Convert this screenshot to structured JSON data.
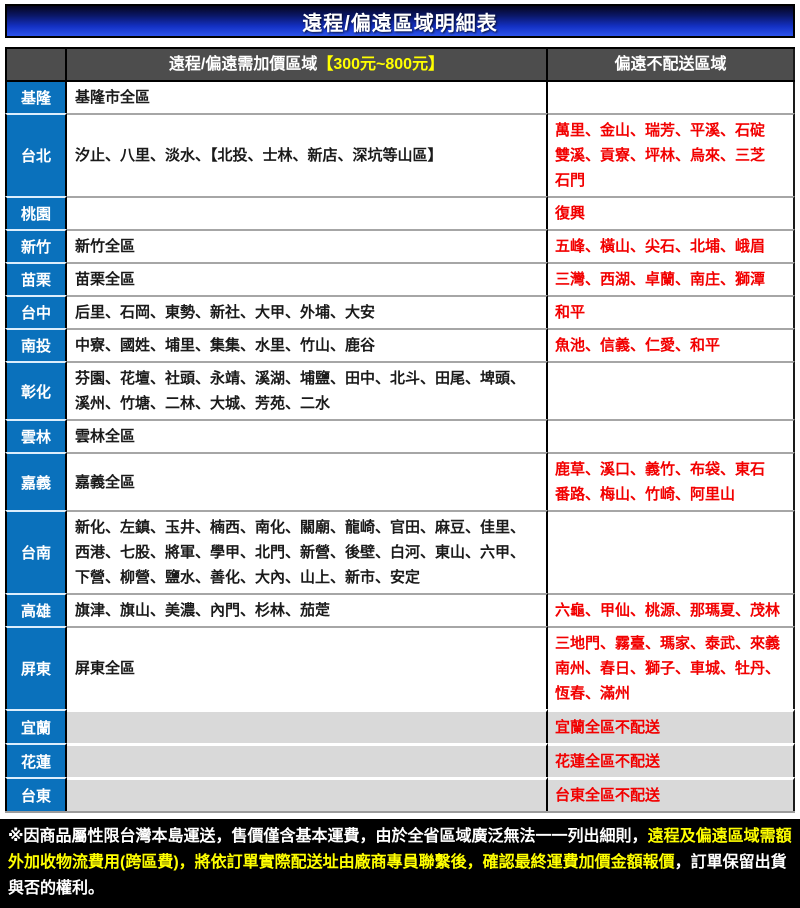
{
  "title": "遠程/偏遠區域明細表",
  "colors": {
    "label_blue": "#0a71bc",
    "header_gray": "#4d4d4d",
    "highlight_yellow": "#ffff00",
    "alert_red": "#f20000",
    "disabled_gray": "#d9d9d9"
  },
  "table": {
    "header": {
      "surcharge_label": "遠程/偏遠需加價區域",
      "surcharge_price": "【300元~800元】",
      "no_delivery_label": "偏遠不配送區域"
    },
    "rows": [
      {
        "region": "基隆",
        "surcharge": "基隆市全區",
        "no_delivery": "",
        "disabled": false
      },
      {
        "region": "台北",
        "surcharge": "汐止、八里、淡水、【北投、士林、新店、深坑等山區】",
        "no_delivery": "萬里、金山、瑞芳、平溪、石碇\n雙溪、貢寮、坪林、烏來、三芝\n石門",
        "disabled": false
      },
      {
        "region": "桃園",
        "surcharge": "",
        "no_delivery": "復興",
        "disabled": false
      },
      {
        "region": "新竹",
        "surcharge": "新竹全區",
        "no_delivery": "五峰、橫山、尖石、北埔、峨眉",
        "disabled": false
      },
      {
        "region": "苗栗",
        "surcharge": "苗栗全區",
        "no_delivery": "三灣、西湖、卓蘭、南庄、獅潭",
        "disabled": false
      },
      {
        "region": "台中",
        "surcharge": "后里、石岡、東勢、新社、大甲、外埔、大安",
        "no_delivery": "和平",
        "disabled": false
      },
      {
        "region": "南投",
        "surcharge": "中寮、國姓、埔里、集集、水里、竹山、鹿谷",
        "no_delivery": "魚池、信義、仁愛、和平",
        "disabled": false
      },
      {
        "region": "彰化",
        "surcharge": "芬園、花壇、社頭、永靖、溪湖、埔鹽、田中、北斗、田尾、埤頭、溪州、竹塘、二林、大城、芳苑、二水",
        "no_delivery": "",
        "disabled": false
      },
      {
        "region": "雲林",
        "surcharge": "雲林全區",
        "no_delivery": "",
        "disabled": false
      },
      {
        "region": "嘉義",
        "surcharge": "嘉義全區",
        "no_delivery": "鹿草、溪口、義竹、布袋、東石\n番路、梅山、竹崎、阿里山",
        "disabled": false
      },
      {
        "region": "台南",
        "surcharge": "新化、左鎮、玉井、楠西、南化、關廟、龍崎、官田、麻豆、佳里、西港、七股、將軍、學甲、北門、新營、後壁、白河、東山、六甲、下營、柳營、鹽水、善化、大內、山上、新市、安定",
        "no_delivery": "",
        "disabled": false
      },
      {
        "region": "高雄",
        "surcharge": "旗津、旗山、美濃、內門、杉林、茄萣",
        "no_delivery": "六龜、甲仙、桃源、那瑪夏、茂林",
        "disabled": false
      },
      {
        "region": "屏東",
        "surcharge": "屏東全區",
        "no_delivery": "三地門、霧臺、瑪家、泰武、來義\n南州、春日、獅子、車城、牡丹、\n恆春、滿州",
        "disabled": false
      },
      {
        "region": "宜蘭",
        "surcharge": "",
        "no_delivery": "宜蘭全區不配送",
        "disabled": true
      },
      {
        "region": "花蓮",
        "surcharge": "",
        "no_delivery": "花蓮全區不配送",
        "disabled": true
      },
      {
        "region": "台東",
        "surcharge": "",
        "no_delivery": "台東全區不配送",
        "disabled": true
      }
    ]
  },
  "footnote": {
    "prefix": "※因商品屬性限台灣本島運送，售價僅含基本運費，由於全省區域廣泛無法一一列出細則，",
    "highlight": "遠程及偏遠區域需額外加收物流費用(跨區費)，將依訂單實際配送址由廠商專員聯繫後，確認最終運費加價金額報價",
    "suffix": "，訂單保留出貨與否的權利。"
  }
}
